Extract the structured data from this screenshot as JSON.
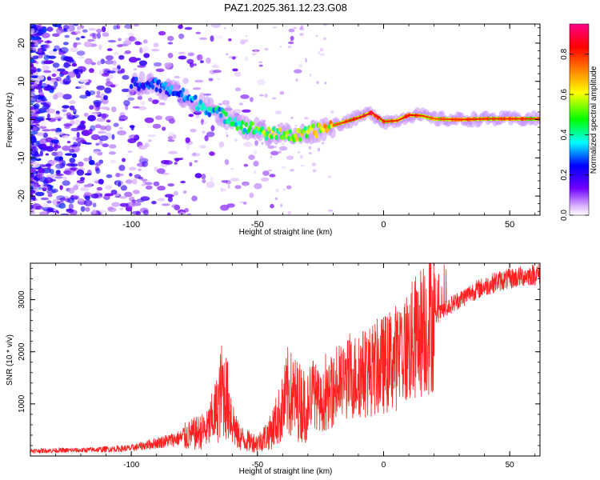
{
  "chart_data": [
    {
      "type": "heatmap",
      "title": "PAZ1.2025.361.12.23.G08",
      "xlabel": "Height of straight line (km)",
      "ylabel": "Frequency (Hz)",
      "xlim": [
        -140,
        62
      ],
      "ylim": [
        -25,
        25
      ],
      "xticks": [
        -100,
        -50,
        0,
        50
      ],
      "yticks": [
        -20,
        -10,
        0,
        10,
        20
      ],
      "colorbar": {
        "label": "Normalized spectral amplitude",
        "range": [
          0,
          0.95
        ],
        "ticks": [
          0.0,
          0.2,
          0.4,
          0.6,
          0.8
        ],
        "colormap": [
          "#ffffff",
          "#c080ff",
          "#7000ff",
          "#0000ff",
          "#00ffff",
          "#00ff00",
          "#ffff00",
          "#ff8000",
          "#ff0000",
          "#ff0080"
        ]
      },
      "signal_track": {
        "x": [
          -100,
          -90,
          -80,
          -70,
          -60,
          -55,
          -50,
          -45,
          -40,
          -35,
          -30,
          -25,
          -20,
          -15,
          -10,
          -5,
          0,
          5,
          10,
          15,
          20,
          30,
          40,
          50,
          62
        ],
        "y": [
          9.5,
          9,
          6.5,
          3,
          0,
          -2,
          -2.5,
          -4,
          -3.5,
          -4.5,
          -3.5,
          -2.5,
          -1.5,
          -0.5,
          0.5,
          1.8,
          -0.5,
          -0.3,
          1.2,
          1,
          0.2,
          0,
          0.2,
          0.2,
          0.2
        ],
        "amplitude": [
          0.3,
          0.35,
          0.4,
          0.45,
          0.5,
          0.55,
          0.6,
          0.65,
          0.7,
          0.7,
          0.75,
          0.78,
          0.8,
          0.85,
          0.9,
          0.95,
          0.85,
          0.85,
          0.9,
          0.85,
          0.8,
          0.85,
          0.85,
          0.85,
          0.85
        ]
      }
    },
    {
      "type": "line",
      "xlabel": "Height of straight line (km)",
      "ylabel": "SNR (10 * v/v)",
      "xlim": [
        -140,
        62
      ],
      "ylim": [
        0,
        3700
      ],
      "xticks": [
        -100,
        -50,
        0,
        50
      ],
      "yticks": [
        1000,
        2000,
        3000
      ],
      "color": "#ff2020",
      "series": [
        {
          "name": "SNR",
          "x": [
            -140,
            -120,
            -110,
            -100,
            -90,
            -80,
            -70,
            -66,
            -64,
            -62,
            -60,
            -58,
            -55,
            -50,
            -45,
            -40,
            -38,
            -35,
            -32,
            -30,
            -28,
            -25,
            -22,
            -20,
            -15,
            -10,
            -5,
            0,
            5,
            10,
            15,
            20,
            25,
            30,
            35,
            40,
            45,
            50,
            55,
            62
          ],
          "y": [
            100,
            110,
            130,
            150,
            250,
            350,
            500,
            900,
            1300,
            1100,
            700,
            400,
            300,
            250,
            450,
            900,
            1200,
            1100,
            1000,
            950,
            1250,
            1000,
            1100,
            1250,
            1450,
            1550,
            1650,
            1750,
            1900,
            2100,
            2400,
            2650,
            2850,
            3000,
            3150,
            3250,
            3350,
            3400,
            3450,
            3500
          ]
        }
      ]
    }
  ]
}
